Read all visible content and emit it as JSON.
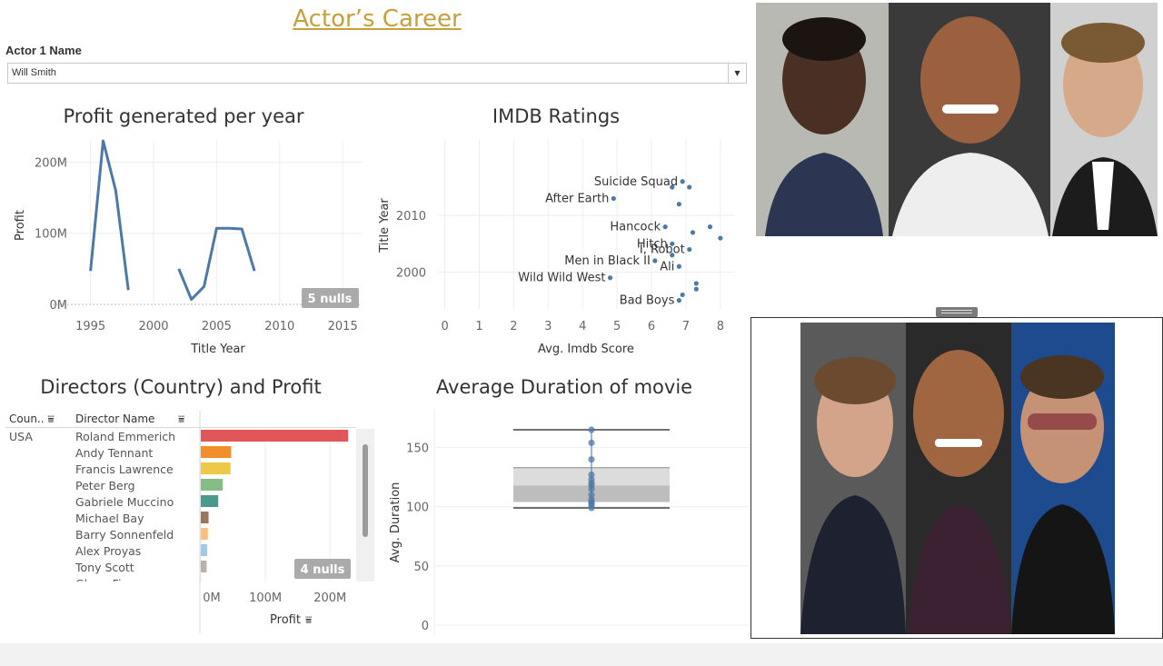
{
  "header": {
    "title": "Actor’s Career"
  },
  "filter": {
    "label": "Actor 1 Name",
    "value": "Will Smith"
  },
  "icons": {
    "dropdown": "chevron-down-icon",
    "sort": "sort-icon"
  },
  "colors": {
    "title": "#c4a13c",
    "line": "#4e79a7",
    "grid": "#eeeeee",
    "nulls_badge": "#aaaaaa"
  },
  "profit_chart": {
    "title": "Profit generated per year",
    "nulls": "5 nulls",
    "chart_data": {
      "type": "line",
      "title": "Profit generated per year",
      "xlabel": "Title Year",
      "ylabel": "Profit",
      "x_ticks": [
        "1995",
        "2000",
        "2005",
        "2010",
        "2015"
      ],
      "y_ticks": [
        "0M",
        "100M",
        "200M"
      ],
      "xlim": [
        1992,
        2016.5
      ],
      "ylim": [
        0,
        230
      ],
      "segments": [
        {
          "x": [
            1995,
            1996,
            1997,
            1998
          ],
          "y": [
            47,
            230,
            160,
            20
          ]
        },
        {
          "x": [
            2002,
            2003,
            2004,
            2005,
            2006,
            2007,
            2008
          ],
          "y": [
            50,
            7,
            25,
            107,
            107,
            106,
            47
          ]
        }
      ]
    }
  },
  "imdb_chart": {
    "title": "IMDB Ratings",
    "chart_data": {
      "type": "scatter",
      "title": "IMDB Ratings",
      "xlabel": "Avg. Imdb Score",
      "ylabel": "Title Year",
      "x_ticks": [
        "0",
        "1",
        "2",
        "3",
        "4",
        "5",
        "6",
        "7",
        "8"
      ],
      "y_ticks": [
        "2000",
        "2010"
      ],
      "xlim": [
        -0.2,
        8.4
      ],
      "ylim": [
        1993.5,
        2023.5
      ],
      "points": [
        {
          "x": 4.9,
          "y": 2013,
          "label": "After Earth"
        },
        {
          "x": 6.6,
          "y": 2015,
          "label": ""
        },
        {
          "x": 6.9,
          "y": 2016,
          "label": "Suicide Squad"
        },
        {
          "x": 7.1,
          "y": 2015,
          "label": ""
        },
        {
          "x": 6.8,
          "y": 2012,
          "label": ""
        },
        {
          "x": 6.4,
          "y": 2008,
          "label": "Hancock"
        },
        {
          "x": 7.7,
          "y": 2008,
          "label": ""
        },
        {
          "x": 7.2,
          "y": 2007,
          "label": ""
        },
        {
          "x": 8.0,
          "y": 2006,
          "label": ""
        },
        {
          "x": 6.6,
          "y": 2005,
          "label": "Hitch"
        },
        {
          "x": 7.1,
          "y": 2004,
          "label": "I, Robot"
        },
        {
          "x": 6.6,
          "y": 2003,
          "label": ""
        },
        {
          "x": 6.1,
          "y": 2002,
          "label": "Men in Black II"
        },
        {
          "x": 6.8,
          "y": 2001,
          "label": "Ali"
        },
        {
          "x": 4.8,
          "y": 1999,
          "label": "Wild Wild West"
        },
        {
          "x": 7.3,
          "y": 1998,
          "label": ""
        },
        {
          "x": 7.3,
          "y": 1997,
          "label": ""
        },
        {
          "x": 6.9,
          "y": 1996,
          "label": ""
        },
        {
          "x": 6.8,
          "y": 1995,
          "label": "Bad Boys"
        }
      ]
    }
  },
  "directors_chart": {
    "title": "Directors (Country) and Profit",
    "col_country": "Coun..",
    "col_director": "Director Name",
    "country": "USA",
    "nulls": "4 nulls",
    "axis_label": "Profit",
    "chart_data": {
      "type": "bar",
      "title": "Directors (Country) and Profit",
      "xlabel": "Profit",
      "x_ticks": [
        "0M",
        "100M",
        "200M"
      ],
      "xlim": [
        0,
        232
      ],
      "categories": [
        "Roland Emmerich",
        "Andy Tennant",
        "Francis Lawrence",
        "Peter Berg",
        "Gabriele Muccino",
        "Michael Bay",
        "Barry Sonnenfeld",
        "Alex Proyas",
        "Tony Scott",
        "Glenn Ficarra"
      ],
      "values": [
        228,
        47,
        46,
        34,
        27,
        12,
        11,
        10,
        9,
        1
      ],
      "colors": [
        "#e15759",
        "#f28e2b",
        "#edc948",
        "#86bc86",
        "#4a9a8e",
        "#9c755f",
        "#ffbe7d",
        "#a0cbe8",
        "#bab0ac",
        "#a0cbe8"
      ]
    }
  },
  "duration_chart": {
    "title": "Average Duration of movie",
    "chart_data": {
      "type": "box",
      "title": "Average Duration of movie",
      "ylabel": "Avg. Duration",
      "y_ticks": [
        "0",
        "50",
        "100",
        "150"
      ],
      "ylim": [
        0,
        175
      ],
      "whisker_low": 99,
      "q1": 104,
      "median": 118,
      "q3": 133,
      "whisker_high": 165,
      "points": [
        99,
        101,
        103,
        104,
        106,
        110,
        115,
        118,
        120,
        123,
        127,
        140,
        154,
        165
      ]
    }
  },
  "photos": {
    "top": [
      "Denzel Washington portrait",
      "Dwayne Johnson portrait",
      "Leonardo DiCaprio portrait"
    ],
    "bottom": [
      "Tom Cruise portrait",
      "Dwayne Johnson portrait",
      "Robert Downey Jr. portrait"
    ]
  }
}
